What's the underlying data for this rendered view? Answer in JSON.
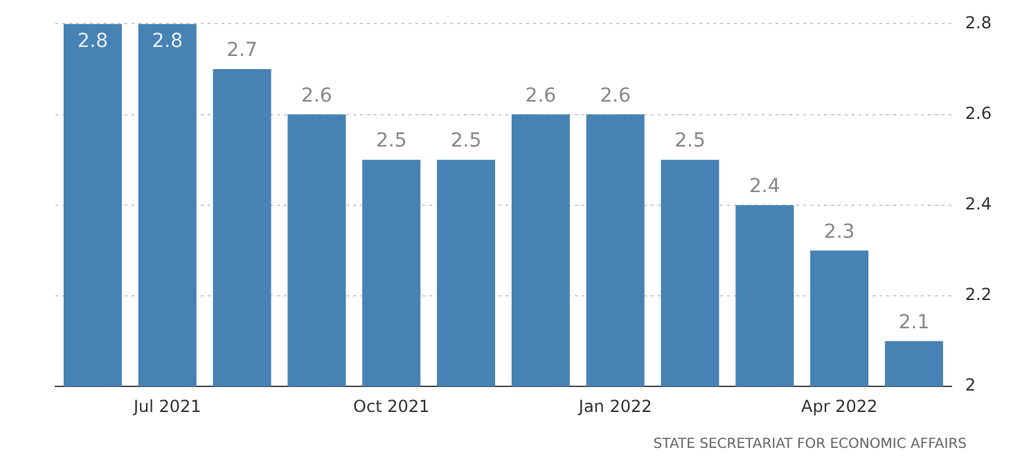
{
  "chart_data": {
    "type": "bar",
    "categories": [
      null,
      "Jul 2021",
      null,
      null,
      "Oct 2021",
      null,
      null,
      "Jan 2022",
      null,
      null,
      "Apr 2022",
      null
    ],
    "values": [
      2.8,
      2.8,
      2.7,
      2.6,
      2.5,
      2.5,
      2.6,
      2.6,
      2.5,
      2.4,
      2.3,
      2.1
    ],
    "color": "#4682b4",
    "ylim": [
      2,
      2.8
    ],
    "yticks": [
      2,
      2.2,
      2.4,
      2.6,
      2.8
    ],
    "grid": "y",
    "legend": false,
    "data_labels": true,
    "annotations": [
      "STATE SECRETARIAT FOR ECONOMIC AFFAIRS"
    ]
  }
}
